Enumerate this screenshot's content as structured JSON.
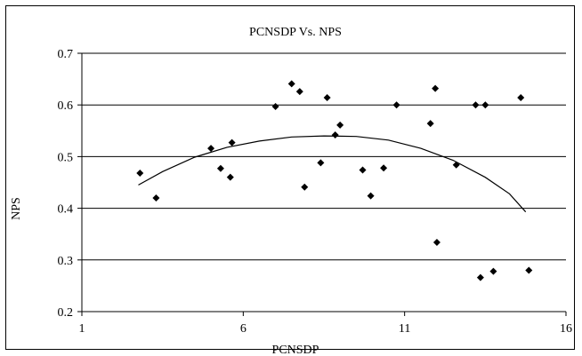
{
  "chart_data": {
    "type": "scatter",
    "title": "PCNSDP Vs. NPS",
    "xlabel": "PCNSDP",
    "ylabel": "NPS",
    "xlim": [
      1,
      16
    ],
    "ylim": [
      0.2,
      0.7
    ],
    "xticks": [
      1,
      6,
      11,
      16
    ],
    "yticks": [
      0.2,
      0.3,
      0.4,
      0.5,
      0.6,
      0.7
    ],
    "ytick_labels": [
      "0.2",
      "0.3",
      "0.4",
      "0.5",
      "0.6",
      "0.7"
    ],
    "grid": "horizontal",
    "legend": "none",
    "marker_color": "#000000",
    "series": [
      {
        "points": [
          [
            2.8,
            0.468
          ],
          [
            3.3,
            0.42
          ],
          [
            5.0,
            0.516
          ],
          [
            5.3,
            0.477
          ],
          [
            5.6,
            0.46
          ],
          [
            5.65,
            0.527
          ],
          [
            7.0,
            0.597
          ],
          [
            7.5,
            0.641
          ],
          [
            7.75,
            0.626
          ],
          [
            7.9,
            0.441
          ],
          [
            8.4,
            0.488
          ],
          [
            8.6,
            0.614
          ],
          [
            8.85,
            0.542
          ],
          [
            9.0,
            0.561
          ],
          [
            9.7,
            0.474
          ],
          [
            9.95,
            0.424
          ],
          [
            10.35,
            0.478
          ],
          [
            10.75,
            0.6
          ],
          [
            11.8,
            0.564
          ],
          [
            11.95,
            0.632
          ],
          [
            12.0,
            0.334
          ],
          [
            12.6,
            0.484
          ],
          [
            13.2,
            0.6
          ],
          [
            13.35,
            0.266
          ],
          [
            13.5,
            0.6
          ],
          [
            13.75,
            0.278
          ],
          [
            14.6,
            0.614
          ],
          [
            14.85,
            0.28
          ]
        ]
      }
    ],
    "trendline": {
      "type": "polynomial-2",
      "points": [
        [
          2.75,
          0.445
        ],
        [
          3.5,
          0.471
        ],
        [
          4.5,
          0.499
        ],
        [
          5.5,
          0.518
        ],
        [
          6.5,
          0.53
        ],
        [
          7.5,
          0.538
        ],
        [
          8.5,
          0.54
        ],
        [
          9.5,
          0.539
        ],
        [
          10.5,
          0.532
        ],
        [
          11.5,
          0.516
        ],
        [
          12.5,
          0.493
        ],
        [
          13.5,
          0.46
        ],
        [
          14.25,
          0.428
        ],
        [
          14.75,
          0.393
        ]
      ]
    }
  }
}
